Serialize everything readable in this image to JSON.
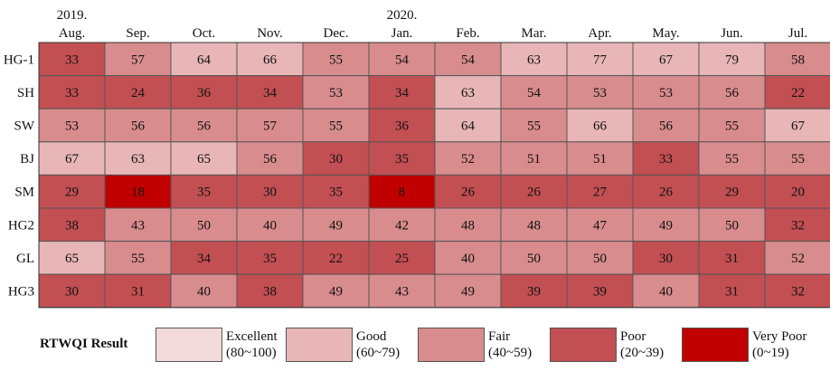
{
  "chart_data": {
    "type": "heatmap",
    "title": "",
    "xlabel": "",
    "ylabel": "",
    "year_labels": [
      "2019.",
      "",
      "",
      "",
      "",
      "2020.",
      "",
      "",
      "",
      "",
      "",
      ""
    ],
    "columns": [
      "Aug.",
      "Sep.",
      "Oct.",
      "Nov.",
      "Dec.",
      "Jan.",
      "Feb.",
      "Mar.",
      "Apr.",
      "May.",
      "Jun.",
      "Jul."
    ],
    "rows": [
      "HG-1",
      "SH",
      "SW",
      "BJ",
      "SM",
      "HG2",
      "GL",
      "HG3"
    ],
    "values": [
      [
        33,
        57,
        64,
        66,
        55,
        54,
        54,
        63,
        77,
        67,
        79,
        58
      ],
      [
        33,
        24,
        36,
        34,
        53,
        34,
        63,
        54,
        53,
        53,
        56,
        22
      ],
      [
        53,
        56,
        56,
        57,
        55,
        36,
        64,
        55,
        66,
        56,
        55,
        67
      ],
      [
        67,
        63,
        65,
        56,
        30,
        35,
        52,
        51,
        51,
        33,
        55,
        55
      ],
      [
        29,
        18,
        35,
        30,
        35,
        8,
        26,
        26,
        27,
        26,
        29,
        20
      ],
      [
        38,
        43,
        50,
        40,
        49,
        42,
        48,
        48,
        47,
        49,
        50,
        32
      ],
      [
        65,
        55,
        34,
        35,
        22,
        25,
        40,
        50,
        50,
        30,
        31,
        52
      ],
      [
        30,
        31,
        40,
        38,
        49,
        43,
        49,
        39,
        39,
        40,
        31,
        32
      ]
    ]
  },
  "legend": {
    "title": "RTWQI Result",
    "items": [
      {
        "name": "Excellent",
        "range": "(80~100)",
        "min": 80,
        "max": 100,
        "color": "#f2dada"
      },
      {
        "name": "Good",
        "range": "(60~79)",
        "min": 60,
        "max": 79,
        "color": "#e8b6b7"
      },
      {
        "name": "Fair",
        "range": "(40~59)",
        "min": 40,
        "max": 59,
        "color": "#d98c8d"
      },
      {
        "name": "Poor",
        "range": "(20~39)",
        "min": 20,
        "max": 39,
        "color": "#c24f52"
      },
      {
        "name": "Very Poor",
        "range": "(0~19)",
        "min": 0,
        "max": 19,
        "color": "#c00000"
      }
    ]
  }
}
